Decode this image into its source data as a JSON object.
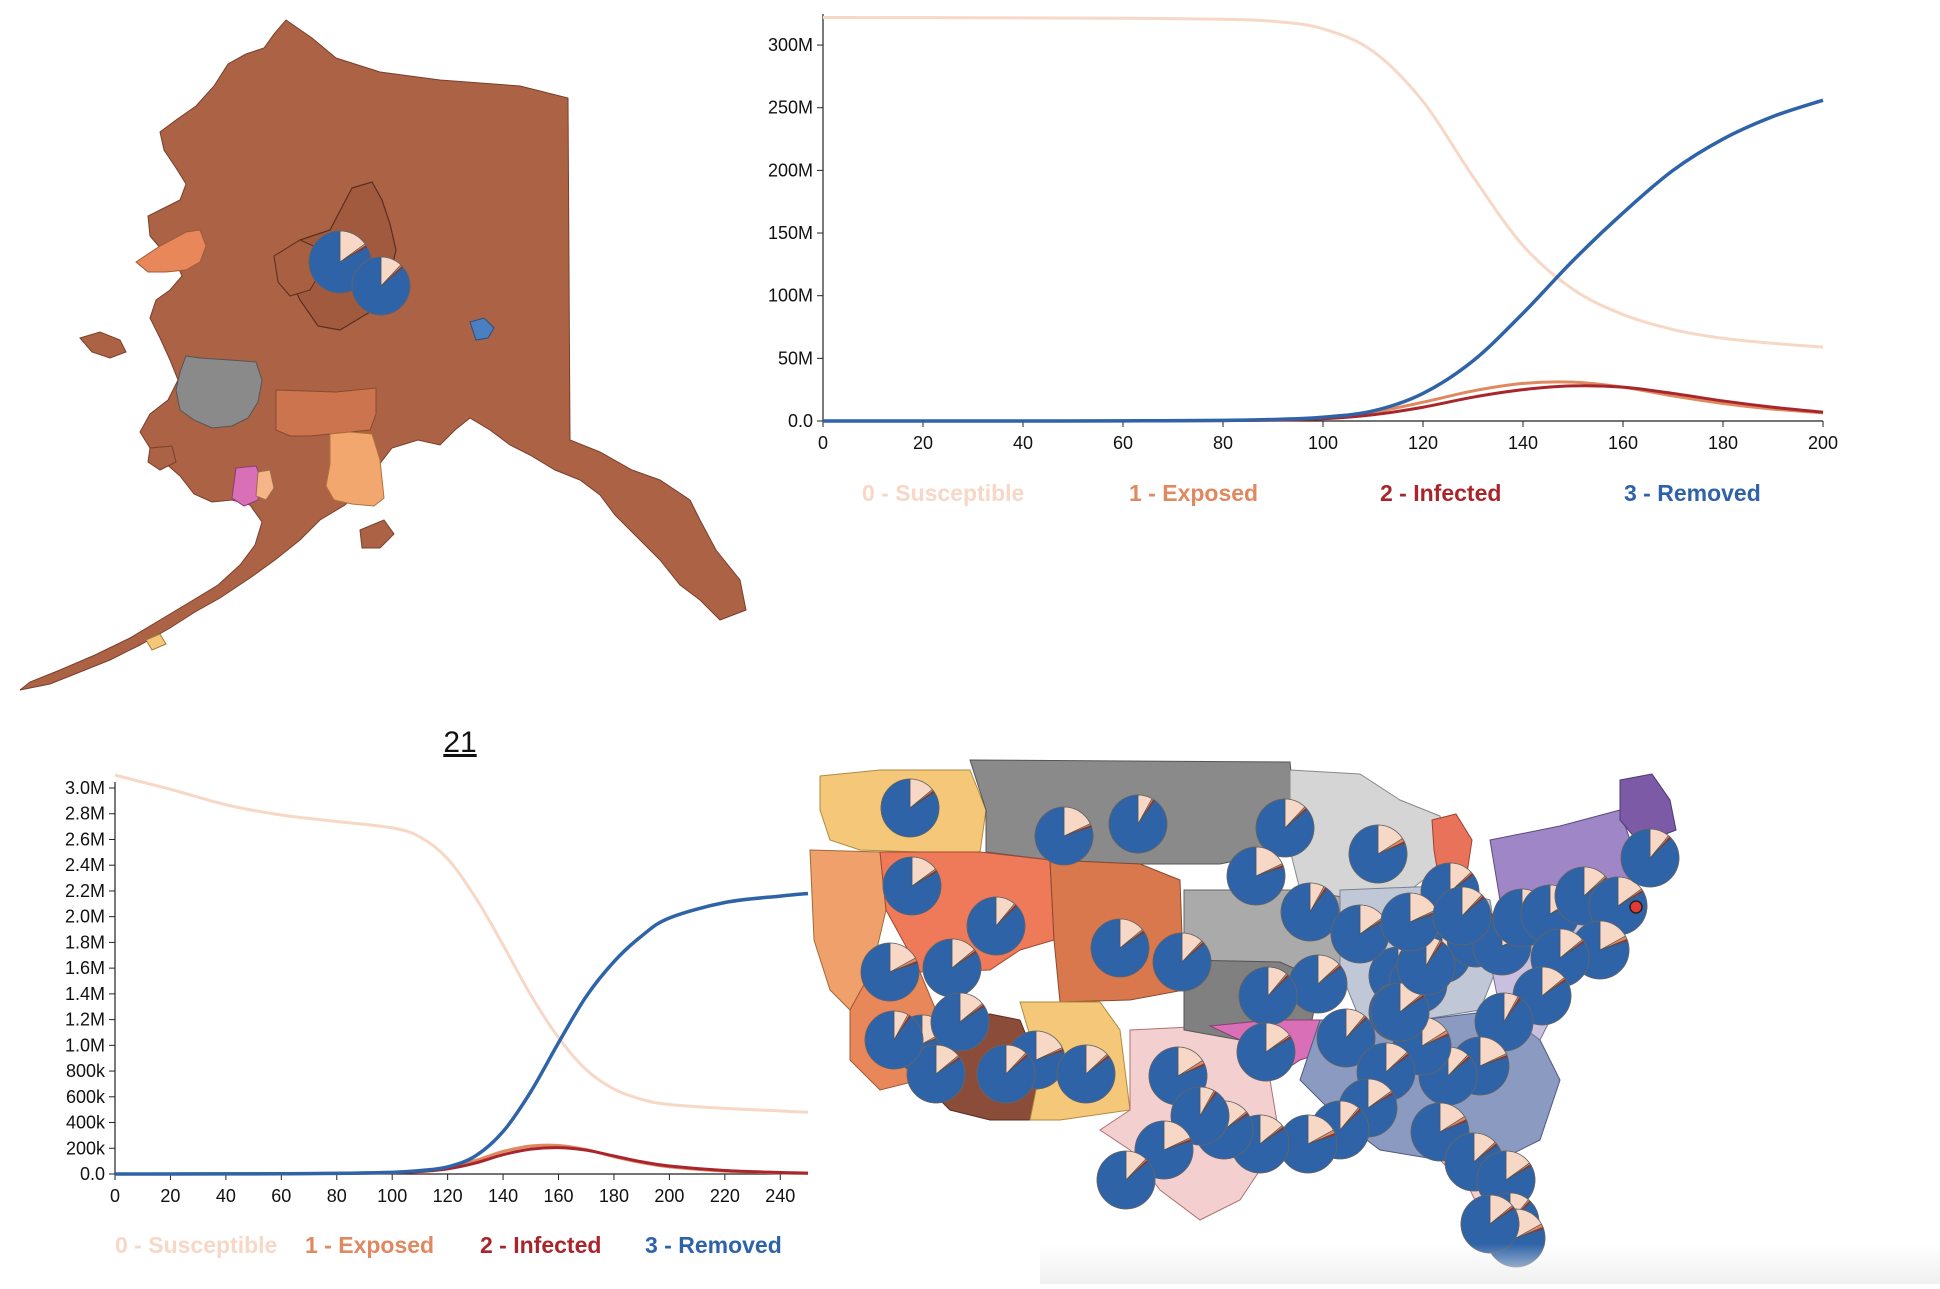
{
  "page": {
    "number_label": "21"
  },
  "colors": {
    "susceptible": "#f7d7c6",
    "exposed": "#e0885f",
    "infected": "#a8262b",
    "removed": "#2f63a8",
    "map_brown": "#ab6245",
    "map_orange": "#e8875a",
    "map_light_orange": "#f2a76f",
    "map_grey": "#8a8a8a",
    "map_light_grey": "#d5d5d5",
    "map_pink": "#d96fb7",
    "map_purple": "#7c5aa6",
    "map_yellow": "#f4c878"
  },
  "alaska_map": {
    "title": "",
    "pies": [
      {
        "S": 0.15,
        "E": 0.01,
        "I": 0.01,
        "R": 0.83
      },
      {
        "S": 0.12,
        "E": 0.01,
        "I": 0.01,
        "R": 0.86
      }
    ]
  },
  "us_map": {
    "title": "",
    "pies": [
      {
        "S": 0.14,
        "E": 0.01,
        "I": 0.01,
        "R": 0.84
      },
      {
        "S": 0.08,
        "E": 0.01,
        "I": 0.01,
        "R": 0.9
      },
      {
        "S": 0.18,
        "E": 0.01,
        "I": 0.01,
        "R": 0.8
      },
      {
        "S": 0.12,
        "E": 0.01,
        "I": 0.01,
        "R": 0.86
      },
      {
        "S": 0.16,
        "E": 0.02,
        "I": 0.01,
        "R": 0.81
      },
      {
        "S": 0.13,
        "E": 0.01,
        "I": 0.01,
        "R": 0.85
      },
      {
        "S": 0.15,
        "E": 0.01,
        "I": 0.01,
        "R": 0.83
      },
      {
        "S": 0.11,
        "E": 0.01,
        "I": 0.01,
        "R": 0.87
      },
      {
        "S": 0.17,
        "E": 0.02,
        "I": 0.01,
        "R": 0.8
      },
      {
        "S": 0.14,
        "E": 0.01,
        "I": 0.01,
        "R": 0.84
      }
    ],
    "selected_marker": "selected-city-marker"
  },
  "chart_data": [
    {
      "type": "line",
      "title": "",
      "xlabel": "",
      "ylabel": "",
      "xlim": [
        0,
        200
      ],
      "ylim": [
        0,
        320000000
      ],
      "x_ticks": [
        0,
        20,
        40,
        60,
        80,
        100,
        120,
        140,
        160,
        180,
        200
      ],
      "x_tick_labels": [
        "0",
        "20",
        "40",
        "60",
        "80",
        "100",
        "120",
        "140",
        "160",
        "180",
        "200"
      ],
      "y_ticks": [
        0,
        50000000,
        100000000,
        150000000,
        200000000,
        250000000,
        300000000
      ],
      "y_tick_labels": [
        "0.0",
        "50M",
        "100M",
        "150M",
        "200M",
        "250M",
        "300M"
      ],
      "legend_position": "bottom",
      "x": [
        0,
        20,
        40,
        60,
        80,
        90,
        100,
        110,
        120,
        130,
        140,
        150,
        160,
        170,
        180,
        190,
        200
      ],
      "series": [
        {
          "name": "0 - Susceptible",
          "color": "#f7d7c6",
          "values": [
            322000000,
            321900000,
            321700000,
            321400000,
            320600000,
            319000000,
            313000000,
            295000000,
            255000000,
            195000000,
            140000000,
            105000000,
            85000000,
            73000000,
            66000000,
            62000000,
            59000000
          ]
        },
        {
          "name": "1 - Exposed",
          "color": "#e0885f",
          "values": [
            0,
            10000,
            30000,
            100000,
            400000,
            900000,
            2500000,
            7000000,
            15000000,
            24000000,
            30000000,
            31000000,
            27000000,
            20000000,
            14000000,
            9500000,
            6500000
          ]
        },
        {
          "name": "2 - Infected",
          "color": "#a8262b",
          "values": [
            0,
            5000,
            20000,
            70000,
            300000,
            700000,
            1800000,
            5000000,
            11000000,
            19000000,
            25000000,
            28000000,
            27000000,
            22000000,
            16000000,
            11000000,
            7000000
          ]
        },
        {
          "name": "3 - Removed",
          "color": "#2f63a8",
          "values": [
            0,
            5000,
            20000,
            100000,
            500000,
            1200000,
            3000000,
            8000000,
            22000000,
            48000000,
            86000000,
            128000000,
            166000000,
            200000000,
            225000000,
            243000000,
            256000000
          ]
        }
      ]
    },
    {
      "type": "line",
      "title": "",
      "xlabel": "",
      "ylabel": "",
      "xlim": [
        0,
        250
      ],
      "ylim": [
        0,
        3000000
      ],
      "x_ticks": [
        0,
        20,
        40,
        60,
        80,
        100,
        120,
        140,
        160,
        180,
        200,
        220,
        240
      ],
      "x_tick_labels": [
        "0",
        "20",
        "40",
        "60",
        "80",
        "100",
        "120",
        "140",
        "160",
        "180",
        "200",
        "220",
        "240"
      ],
      "y_ticks": [
        0,
        200000,
        400000,
        600000,
        800000,
        1000000,
        1200000,
        1400000,
        1600000,
        1800000,
        2000000,
        2200000,
        2400000,
        2600000,
        2800000,
        3000000
      ],
      "y_tick_labels": [
        "0.0",
        "200k",
        "400k",
        "600k",
        "800k",
        "1.0M",
        "1.2M",
        "1.4M",
        "1.6M",
        "1.8M",
        "2.0M",
        "2.2M",
        "2.4M",
        "2.6M",
        "2.8M",
        "3.0M"
      ],
      "legend_position": "bottom",
      "x": [
        0,
        20,
        40,
        60,
        80,
        100,
        110,
        120,
        130,
        140,
        150,
        160,
        170,
        180,
        190,
        200,
        220,
        240,
        250
      ],
      "series": [
        {
          "name": "0 - Susceptible",
          "color": "#f7d7c6",
          "values": [
            3100000,
            2990000,
            2870000,
            2790000,
            2740000,
            2690000,
            2620000,
            2450000,
            2150000,
            1780000,
            1390000,
            1060000,
            810000,
            660000,
            580000,
            540000,
            510000,
            490000,
            480000
          ]
        },
        {
          "name": "1 - Exposed",
          "color": "#e0885f",
          "values": [
            0,
            500,
            1500,
            3000,
            6000,
            14000,
            26000,
            52000,
            105000,
            175000,
            218000,
            222000,
            190000,
            135000,
            88000,
            55000,
            22000,
            9000,
            5000
          ]
        },
        {
          "name": "2 - Infected",
          "color": "#a8262b",
          "values": [
            0,
            300,
            1000,
            2000,
            4500,
            10000,
            19000,
            40000,
            85000,
            150000,
            193000,
            205000,
            185000,
            140000,
            95000,
            62000,
            27000,
            12000,
            7000
          ]
        },
        {
          "name": "3 - Removed",
          "color": "#2f63a8",
          "values": [
            0,
            300,
            900,
            2000,
            5000,
            13000,
            26000,
            55000,
            140000,
            330000,
            640000,
            1020000,
            1380000,
            1650000,
            1850000,
            1990000,
            2110000,
            2160000,
            2180000
          ]
        }
      ]
    }
  ]
}
